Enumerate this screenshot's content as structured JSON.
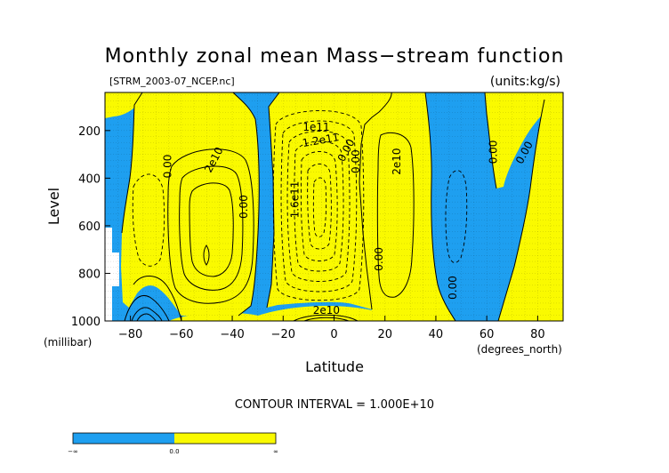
{
  "chart_data": {
    "type": "heatmap",
    "title": "Monthly zonal mean Mass−stream function",
    "source_file": "[STRM_2003-07_NCEP.nc]",
    "units": "(units:kg/s)",
    "xlabel": "Latitude",
    "xunit": "(degrees_north)",
    "ylabel": "Level",
    "yunit": "(millibar)",
    "xlim": [
      -90,
      90
    ],
    "ylim": [
      1000,
      40
    ],
    "y_inverted": true,
    "x_ticks": [
      -80,
      -60,
      -40,
      -20,
      0,
      20,
      40,
      60,
      80
    ],
    "x_tick_labels": [
      "−80",
      "−60",
      "−40",
      "−20",
      "0",
      "20",
      "40",
      "60",
      "80"
    ],
    "y_ticks": [
      200,
      400,
      600,
      800,
      1000
    ],
    "y_tick_labels": [
      "200",
      "400",
      "600",
      "800",
      "1000"
    ],
    "grid": true,
    "contour_interval_text": "CONTOUR INTERVAL = 1.000E+10",
    "colors": {
      "negative": "#1e9ff0",
      "positive": "#fafa00",
      "missing": "#ffffff",
      "line": "#000000"
    },
    "colorbar": {
      "labels": [
        "−∞",
        "0.0",
        "∞"
      ]
    },
    "contour_labels": [
      {
        "text": "0.00",
        "lat": -64,
        "lev": 350,
        "rotate": -90
      },
      {
        "text": "2e10",
        "lat": -46,
        "lev": 330,
        "rotate": -62
      },
      {
        "text": "0.00",
        "lat": -34,
        "lev": 520,
        "rotate": -90
      },
      {
        "text": "1.6e11",
        "lat": -14,
        "lev": 490,
        "rotate": -90
      },
      {
        "text": "1e11",
        "lat": -7,
        "lev": 200,
        "rotate": 0
      },
      {
        "text": "1.2e11",
        "lat": -5,
        "lev": 255,
        "rotate": -10
      },
      {
        "text": "0.00",
        "lat": 6,
        "lev": 290,
        "rotate": -62
      },
      {
        "text": "0.00",
        "lat": 10,
        "lev": 330,
        "rotate": -90
      },
      {
        "text": "2e10",
        "lat": 26,
        "lev": 330,
        "rotate": -90
      },
      {
        "text": "0.00",
        "lat": 19,
        "lev": 740,
        "rotate": -90
      },
      {
        "text": "2e10",
        "lat": -3,
        "lev": 970,
        "rotate": 0
      },
      {
        "text": "0.00",
        "lat": 48,
        "lev": 860,
        "rotate": -90
      },
      {
        "text": "0.00",
        "lat": 64,
        "lev": 290,
        "rotate": -90
      },
      {
        "text": "0.00",
        "lat": 76,
        "lev": 300,
        "rotate": -62
      }
    ]
  }
}
